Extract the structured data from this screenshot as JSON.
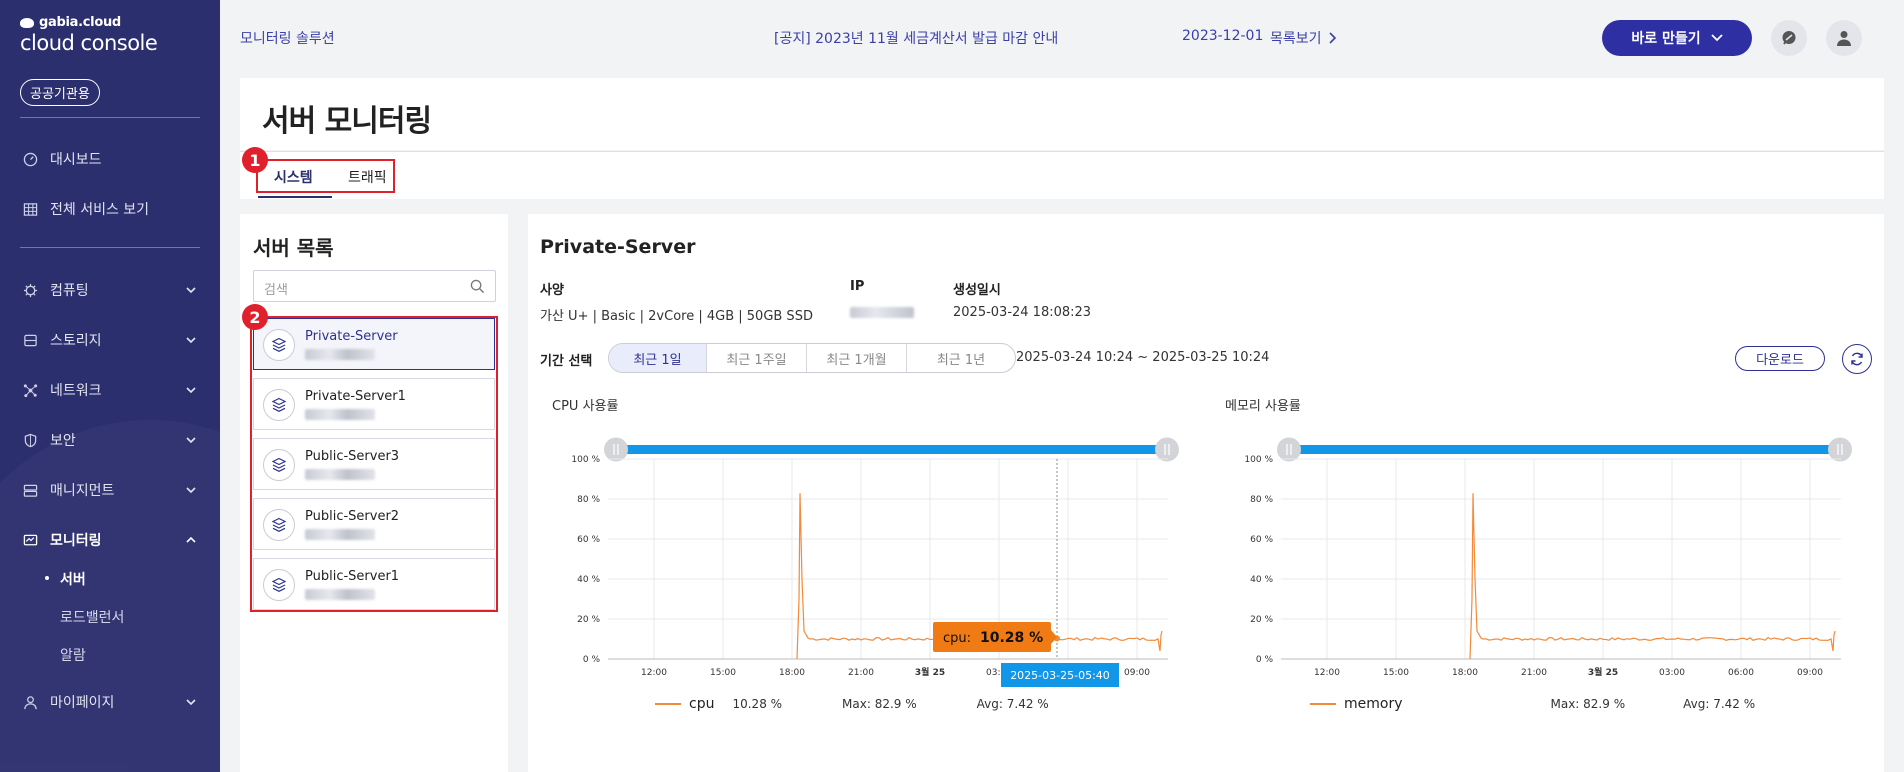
{
  "sidebar": {
    "brand_small": "gabia.cloud",
    "brand_large": "cloud console",
    "badge": "공공기관용",
    "items": [
      {
        "label": "대시보드",
        "icon": "dashboard-icon"
      },
      {
        "label": "전체 서비스 보기",
        "icon": "grid-icon"
      },
      {
        "label": "컴퓨팅",
        "icon": "chip-icon"
      },
      {
        "label": "스토리지",
        "icon": "storage-icon"
      },
      {
        "label": "네트워크",
        "icon": "network-icon"
      },
      {
        "label": "보안",
        "icon": "shield-icon"
      },
      {
        "label": "매니지먼트",
        "icon": "management-icon"
      },
      {
        "label": "모니터링",
        "icon": "monitor-icon"
      },
      {
        "label": "마이페이지",
        "icon": "user-icon"
      }
    ],
    "monitoring_sub": [
      "서버",
      "로드밸런서",
      "알람"
    ]
  },
  "topbar": {
    "solution": "모니터링 솔루션",
    "notice": "[공지] 2023년 11월 세금계산서 발급 마감 안내",
    "notice_date": "2023-12-01",
    "list_link": "목록보기",
    "make_button": "바로 만들기"
  },
  "page": {
    "title": "서버 모니터링",
    "tabs": [
      "시스템",
      "트래픽"
    ],
    "markers": [
      "1",
      "2"
    ]
  },
  "server_list": {
    "title": "서버 목록",
    "search_placeholder": "검색",
    "servers": [
      "Private-Server",
      "Private-Server1",
      "Public-Server3",
      "Public-Server2",
      "Public-Server1"
    ]
  },
  "detail": {
    "name": "Private-Server",
    "spec_label": "사양",
    "spec_value": "가산 U+ | Basic | 2vCore | 4GB | 50GB SSD",
    "ip_label": "IP",
    "created_label": "생성일시",
    "created_value": "2025-03-24 18:08:23",
    "period_label": "기간 선택",
    "periods": [
      "최근 1일",
      "최근 1주일",
      "최근 1개월",
      "최근 1년"
    ],
    "range": "2025-03-24 10:24 ~ 2025-03-25 10:24",
    "download": "다운로드"
  },
  "chart_data": [
    {
      "type": "line",
      "title": "CPU 사용률",
      "x_ticks": [
        "12:00",
        "15:00",
        "18:00",
        "21:00",
        "3월 25",
        "03:00",
        "06:00",
        "09:00"
      ],
      "y_ticks": [
        "100 %",
        "80 %",
        "60 %",
        "40 %",
        "20 %",
        "0 %"
      ],
      "ylim": [
        0,
        100
      ],
      "series": [
        {
          "name": "cpu",
          "current": "10.28 %",
          "max": "Max: 82.9 %",
          "avg": "Avg: 7.42 %"
        }
      ],
      "tooltip": {
        "label": "cpu:",
        "value": "10.28 %",
        "time": "2025-03-25-05:40"
      },
      "color": "#f28a3a"
    },
    {
      "type": "line",
      "title": "메모리 사용률",
      "x_ticks": [
        "12:00",
        "15:00",
        "18:00",
        "21:00",
        "3월 25",
        "03:00",
        "06:00",
        "09:00"
      ],
      "y_ticks": [
        "100 %",
        "80 %",
        "60 %",
        "40 %",
        "20 %",
        "0 %"
      ],
      "ylim": [
        0,
        100
      ],
      "series": [
        {
          "name": "memory",
          "max": "Max: 82.9 %",
          "avg": "Avg: 7.42 %"
        }
      ],
      "color": "#f28a3a"
    }
  ]
}
